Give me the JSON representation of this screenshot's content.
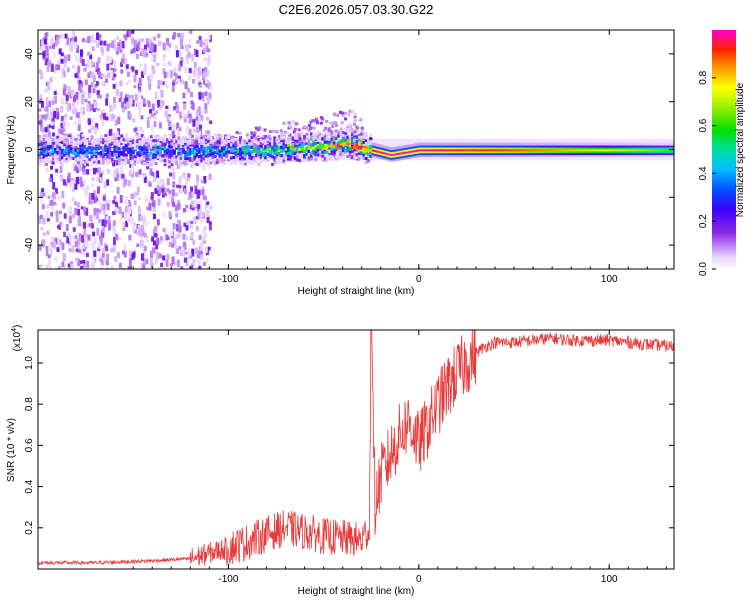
{
  "title": "C2E6.2026.057.03.30.G22",
  "chart_data": [
    {
      "type": "heatmap",
      "xlabel": "Height of straight line (km)",
      "ylabel": "Frequency (Hz)",
      "xlim": [
        -200,
        134
      ],
      "ylim": [
        -50,
        50
      ],
      "xticks": [
        -100,
        0,
        100
      ],
      "yticks": [
        -40,
        -20,
        0,
        20,
        40
      ],
      "colorbar": {
        "label": "Normalized spectral amplitude",
        "range": [
          0,
          1
        ],
        "ticks": [
          0.0,
          0.2,
          0.4,
          0.6,
          0.8
        ]
      },
      "description_points": [
        {
          "x": -190,
          "y": 0,
          "value": 0.35
        },
        {
          "x": -150,
          "y": 0,
          "value": 0.35
        },
        {
          "x": -100,
          "y": 0,
          "value": 0.4
        },
        {
          "x": -80,
          "y": 0,
          "value": 0.55
        },
        {
          "x": -60,
          "y": 1,
          "value": 0.6
        },
        {
          "x": -38,
          "y": 3,
          "value": 0.9
        },
        {
          "x": -30,
          "y": 1,
          "value": 0.95
        },
        {
          "x": -15,
          "y": -2,
          "value": 1.0
        },
        {
          "x": 0,
          "y": 0,
          "value": 1.0
        },
        {
          "x": 50,
          "y": 0,
          "value": 0.9
        },
        {
          "x": 100,
          "y": 0,
          "value": 0.75
        },
        {
          "x": 134,
          "y": 0,
          "value": 0.6
        }
      ]
    },
    {
      "type": "line",
      "xlabel": "Height of straight line (km)",
      "ylabel": "SNR (10 * v/v)",
      "yscale_label": "(x10",
      "yscale_exp": "4",
      "xlim": [
        -200,
        134
      ],
      "ylim": [
        0,
        1.16
      ],
      "xticks": [
        -100,
        0,
        100
      ],
      "yticks": [
        0.2,
        0.4,
        0.6,
        0.8,
        1.0
      ],
      "ytick_labels": [
        "0.2",
        "0.4",
        "0.6",
        "0.8",
        "1.0"
      ],
      "color": "#e83a3a",
      "series": [
        {
          "name": "SNR",
          "x": [
            -200,
            -170,
            -140,
            -120,
            -105,
            -90,
            -80,
            -70,
            -60,
            -50,
            -40,
            -30,
            -26,
            -25,
            -23,
            -20,
            -15,
            -10,
            -5,
            0,
            5,
            10,
            15,
            20,
            25,
            30,
            35,
            40,
            50,
            60,
            70,
            80,
            90,
            100,
            110,
            120,
            134
          ],
          "y": [
            0.03,
            0.03,
            0.04,
            0.05,
            0.09,
            0.13,
            0.17,
            0.2,
            0.18,
            0.16,
            0.15,
            0.14,
            0.2,
            1.16,
            0.3,
            0.45,
            0.55,
            0.65,
            0.72,
            0.6,
            0.7,
            0.8,
            0.88,
            0.95,
            1.0,
            1.05,
            1.08,
            1.1,
            1.1,
            1.11,
            1.12,
            1.11,
            1.11,
            1.11,
            1.1,
            1.09,
            1.08
          ]
        }
      ]
    }
  ]
}
